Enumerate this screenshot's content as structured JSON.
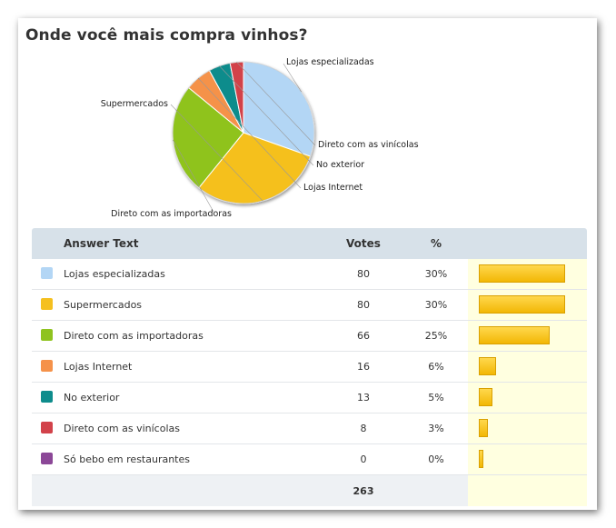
{
  "title": "Onde você mais compra vinhos?",
  "table": {
    "headers": {
      "answer": "Answer Text",
      "votes": "Votes",
      "pct": "%"
    },
    "total": "263"
  },
  "chart_data": {
    "type": "pie",
    "title": "Onde você mais compra vinhos?",
    "slices": [
      {
        "label": "Lojas especializadas",
        "votes": 80,
        "pct": "30%",
        "color": "#b3d6f5"
      },
      {
        "label": "Supermercados",
        "votes": 80,
        "pct": "30%",
        "color": "#f5c01f"
      },
      {
        "label": "Direto com as importadoras",
        "votes": 66,
        "pct": "25%",
        "color": "#8fc31f"
      },
      {
        "label": "Lojas Internet",
        "votes": 16,
        "pct": "6%",
        "color": "#f5924a"
      },
      {
        "label": "No exterior",
        "votes": 13,
        "pct": "5%",
        "color": "#0e8c8c"
      },
      {
        "label": "Direto com as vinícolas",
        "votes": 8,
        "pct": "3%",
        "color": "#d2424a"
      },
      {
        "label": "Só bebo em restaurantes",
        "votes": 0,
        "pct": "0%",
        "color": "#8b4797"
      }
    ],
    "total": 263
  }
}
